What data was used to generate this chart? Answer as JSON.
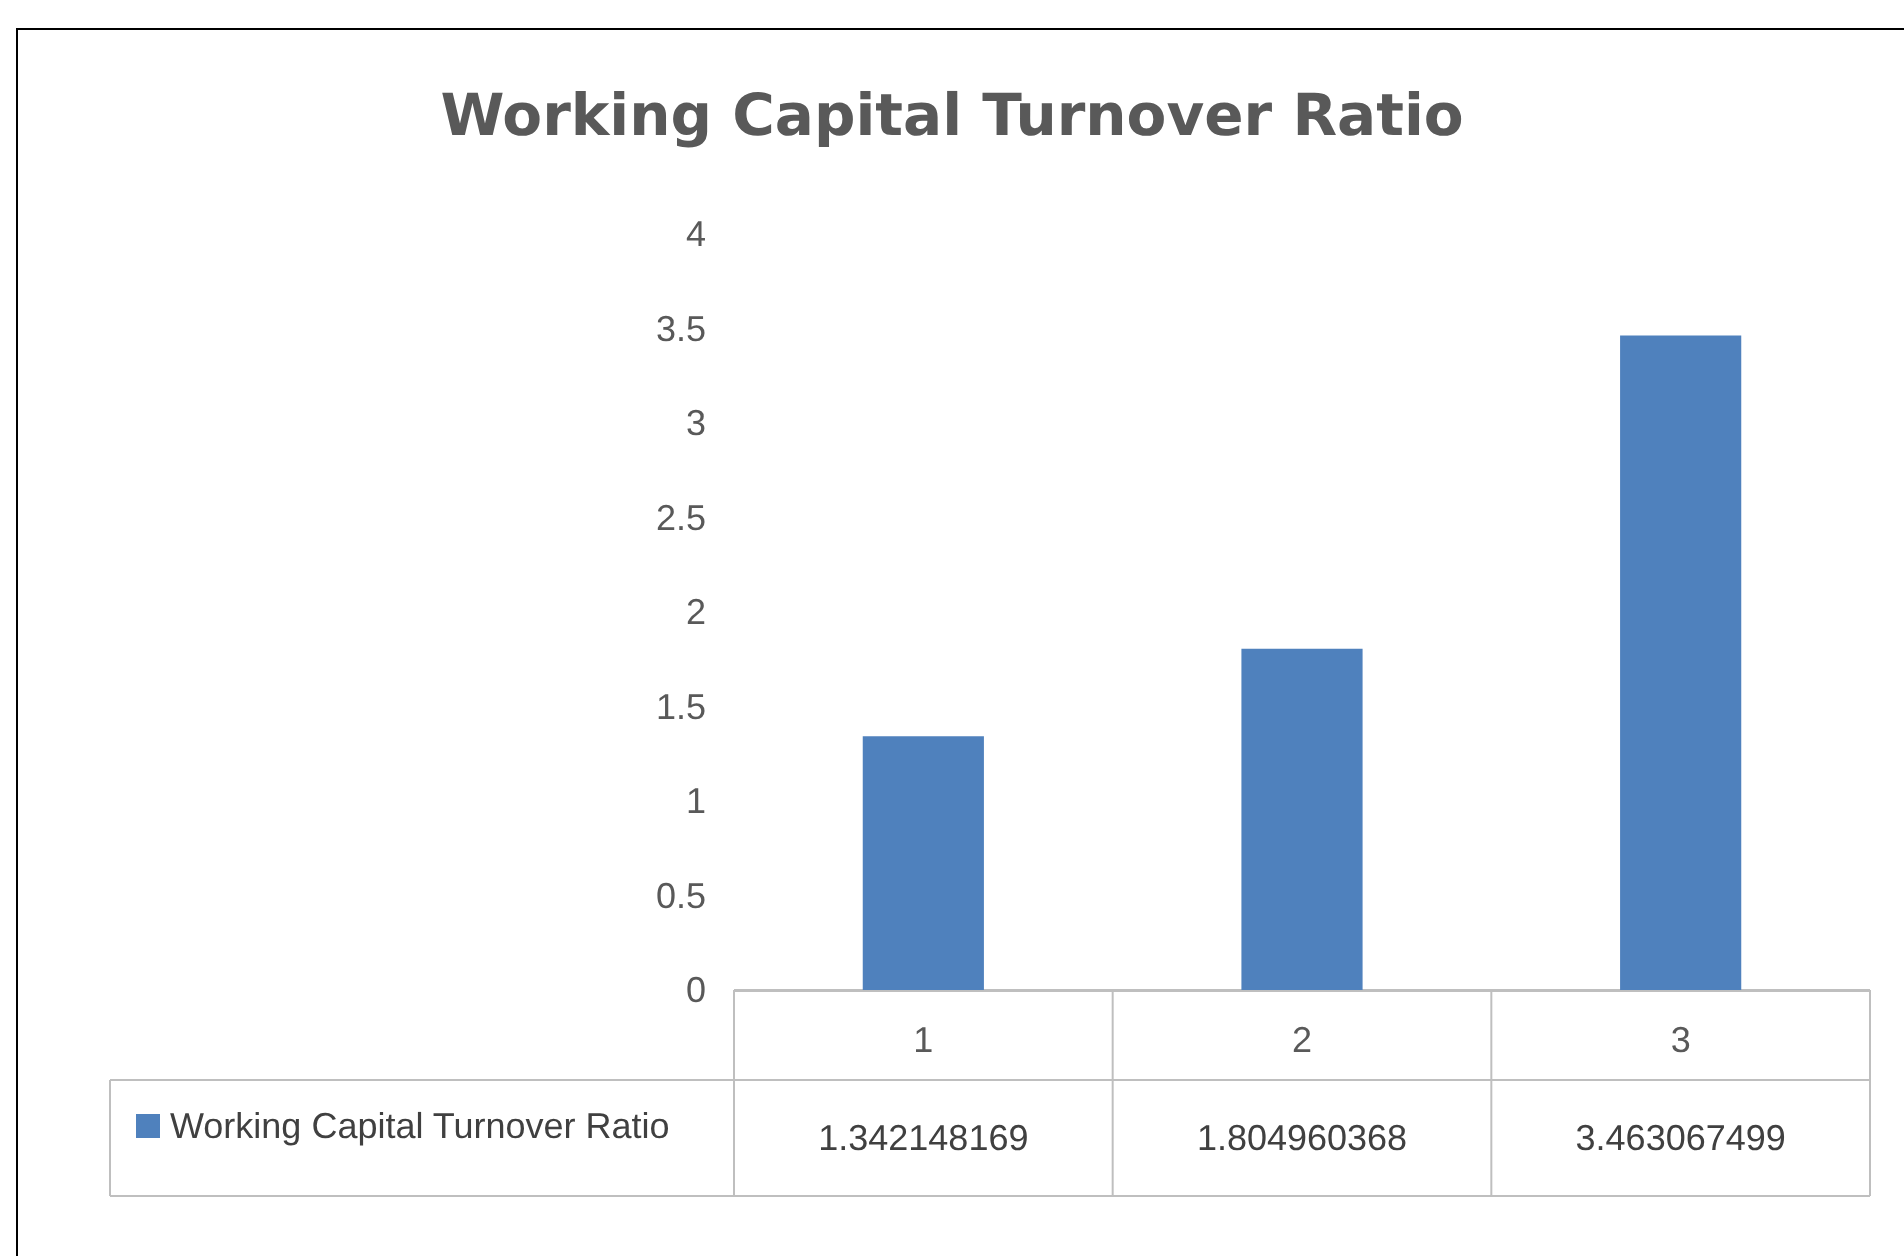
{
  "chart_data": {
    "type": "bar",
    "title": "Working Capital Turnover Ratio",
    "categories": [
      "1",
      "2",
      "3"
    ],
    "series": [
      {
        "name": "Working Capital Turnover Ratio",
        "color": "#4f81bd",
        "values": [
          1.342148169,
          1.804960368,
          3.463067499
        ]
      }
    ],
    "ylim": [
      0,
      4
    ],
    "yticks": [
      0,
      0.5,
      1,
      1.5,
      2,
      2.5,
      3,
      3.5,
      4
    ],
    "grid": false,
    "legend": "bottom left",
    "data_labels": true
  }
}
